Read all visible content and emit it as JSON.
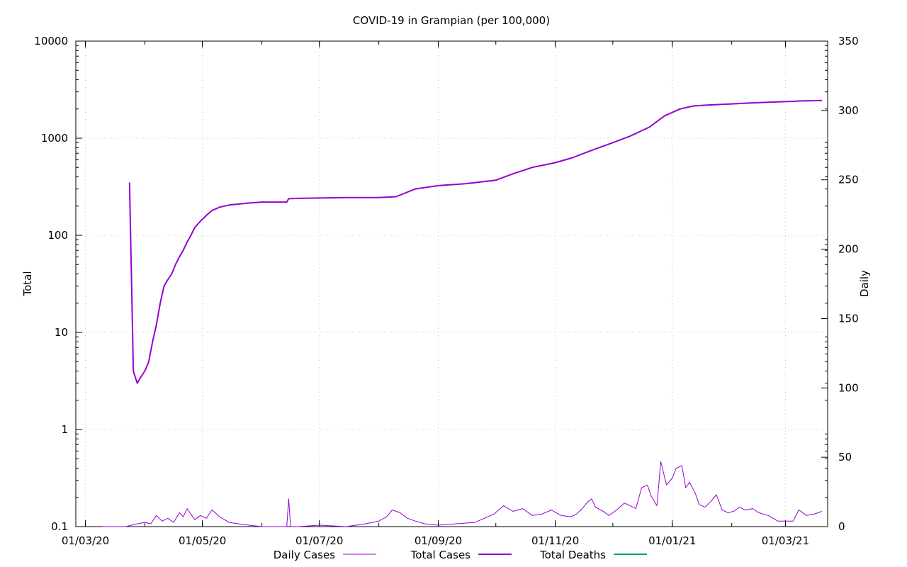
{
  "chart_data": {
    "type": "line",
    "title": "COVID-19 in Grampian (per 100,000)",
    "ylabel": "Total",
    "y2label": "Daily",
    "y_scale": "log",
    "ylim": [
      0.1,
      10000
    ],
    "y2lim": [
      0,
      350
    ],
    "y_ticks": [
      "0.1",
      "1",
      "10",
      "100",
      "1000",
      "10000"
    ],
    "y2_ticks": [
      "0",
      "50",
      "100",
      "150",
      "200",
      "250",
      "300",
      "350"
    ],
    "x_ticks": [
      "01/03/20",
      "01/05/20",
      "01/07/20",
      "01/09/20",
      "01/11/20",
      "01/01/21",
      "01/03/21"
    ],
    "xlim": [
      "2020-02-25",
      "2021-03-23"
    ],
    "grid": true,
    "legend_position": "bottom",
    "colors": {
      "cases": "#9400d3",
      "deaths": "#009e73"
    },
    "series": [
      {
        "name": "Daily Cases",
        "axis": "daily",
        "style": "thin",
        "x": [
          "2020-03-10",
          "2020-03-11",
          "2020-03-12",
          "2020-03-14",
          "2020-03-15",
          "2020-03-17",
          "2020-03-18",
          "2020-03-19",
          "2020-03-20",
          "2020-03-22",
          "2020-03-25",
          "2020-03-28",
          "2020-04-01",
          "2020-04-04",
          "2020-04-07",
          "2020-04-10",
          "2020-04-13",
          "2020-04-16",
          "2020-04-19",
          "2020-04-21",
          "2020-04-23",
          "2020-04-25",
          "2020-04-27",
          "2020-04-30",
          "2020-05-03",
          "2020-05-06",
          "2020-05-10",
          "2020-05-15",
          "2020-05-20",
          "2020-05-25",
          "2020-06-01",
          "2020-06-10",
          "2020-06-14",
          "2020-06-15",
          "2020-06-16",
          "2020-06-20",
          "2020-07-01",
          "2020-07-15",
          "2020-07-25",
          "2020-08-01",
          "2020-08-05",
          "2020-08-08",
          "2020-08-12",
          "2020-08-16",
          "2020-08-20",
          "2020-08-25",
          "2020-09-01",
          "2020-09-10",
          "2020-09-20",
          "2020-09-25",
          "2020-09-30",
          "2020-10-05",
          "2020-10-10",
          "2020-10-15",
          "2020-10-20",
          "2020-10-25",
          "2020-10-30",
          "2020-11-04",
          "2020-11-09",
          "2020-11-12",
          "2020-11-15",
          "2020-11-18",
          "2020-11-20",
          "2020-11-22",
          "2020-11-26",
          "2020-11-29",
          "2020-12-03",
          "2020-12-07",
          "2020-12-10",
          "2020-12-13",
          "2020-12-16",
          "2020-12-19",
          "2020-12-21",
          "2020-12-24",
          "2020-12-26",
          "2020-12-29",
          "2021-01-01",
          "2021-01-03",
          "2021-01-06",
          "2021-01-08",
          "2021-01-10",
          "2021-01-13",
          "2021-01-15",
          "2021-01-18",
          "2021-01-21",
          "2021-01-24",
          "2021-01-27",
          "2021-01-30",
          "2021-02-02",
          "2021-02-05",
          "2021-02-08",
          "2021-02-12",
          "2021-02-15",
          "2021-02-20",
          "2021-02-25",
          "2021-03-01",
          "2021-03-05",
          "2021-03-08",
          "2021-03-12",
          "2021-03-16",
          "2021-03-20"
        ],
        "values": [
          0,
          0,
          0,
          0,
          0,
          0,
          0,
          0,
          0,
          0,
          1,
          2,
          3,
          2,
          8,
          4,
          6,
          3,
          10,
          7,
          13,
          9,
          5,
          8,
          6,
          12,
          7,
          3,
          2,
          1,
          0,
          0,
          0,
          20,
          0,
          0,
          1,
          0,
          2,
          4,
          7,
          12,
          10,
          6,
          4,
          2,
          1,
          2,
          3,
          6,
          9,
          15,
          11,
          13,
          8,
          9,
          12,
          8,
          7,
          9,
          13,
          18,
          20,
          14,
          11,
          8,
          12,
          17,
          15,
          13,
          28,
          30,
          22,
          15,
          47,
          30,
          35,
          42,
          44,
          28,
          32,
          24,
          16,
          14,
          18,
          23,
          12,
          10,
          11,
          14,
          12,
          13,
          10,
          8,
          4,
          4,
          4,
          12,
          8,
          9,
          11
        ]
      },
      {
        "name": "Total Cases",
        "axis": "total",
        "style": "thick",
        "x": [
          "2020-03-10",
          "2020-03-11",
          "2020-03-12",
          "2020-03-15",
          "2020-03-18",
          "2020-03-20",
          "2020-03-22",
          "2020-03-24",
          "2020-03-26",
          "2020-03-28",
          "2020-03-30",
          "2020-04-01",
          "2020-04-03",
          "2020-04-05",
          "2020-04-07",
          "2020-04-09",
          "2020-04-11",
          "2020-04-13",
          "2020-04-15",
          "2020-04-17",
          "2020-04-19",
          "2020-04-21",
          "2020-04-23",
          "2020-04-25",
          "2020-04-27",
          "2020-04-30",
          "2020-05-03",
          "2020-05-06",
          "2020-05-10",
          "2020-05-15",
          "2020-05-20",
          "2020-05-25",
          "2020-06-01",
          "2020-06-10",
          "2020-06-14",
          "2020-06-15",
          "2020-06-20",
          "2020-07-01",
          "2020-07-15",
          "2020-08-01",
          "2020-08-10",
          "2020-08-20",
          "2020-09-01",
          "2020-09-15",
          "2020-10-01",
          "2020-10-10",
          "2020-10-20",
          "2020-11-01",
          "2020-11-10",
          "2020-11-20",
          "2020-12-01",
          "2020-12-10",
          "2020-12-20",
          "2020-12-28",
          "2021-01-05",
          "2021-01-12",
          "2021-01-20",
          "2021-01-31",
          "2021-02-10",
          "2021-02-20",
          "2021-03-01",
          "2021-03-10",
          "2021-03-20"
        ],
        "values": [
          null,
          null,
          null,
          null,
          null,
          null,
          null,
          350,
          4,
          3,
          3.5,
          4,
          5,
          8,
          12,
          20,
          30,
          35,
          40,
          50,
          60,
          70,
          85,
          100,
          120,
          140,
          160,
          180,
          195,
          205,
          210,
          215,
          220,
          220,
          220,
          238,
          240,
          242,
          245,
          245,
          250,
          300,
          325,
          340,
          370,
          430,
          500,
          560,
          630,
          750,
          900,
          1050,
          1300,
          1700,
          2000,
          2150,
          2200,
          2250,
          2300,
          2350,
          2380,
          2420,
          2450
        ]
      },
      {
        "name": "Total Deaths",
        "axis": "total",
        "style": "thick",
        "x": [],
        "values": []
      }
    ]
  }
}
